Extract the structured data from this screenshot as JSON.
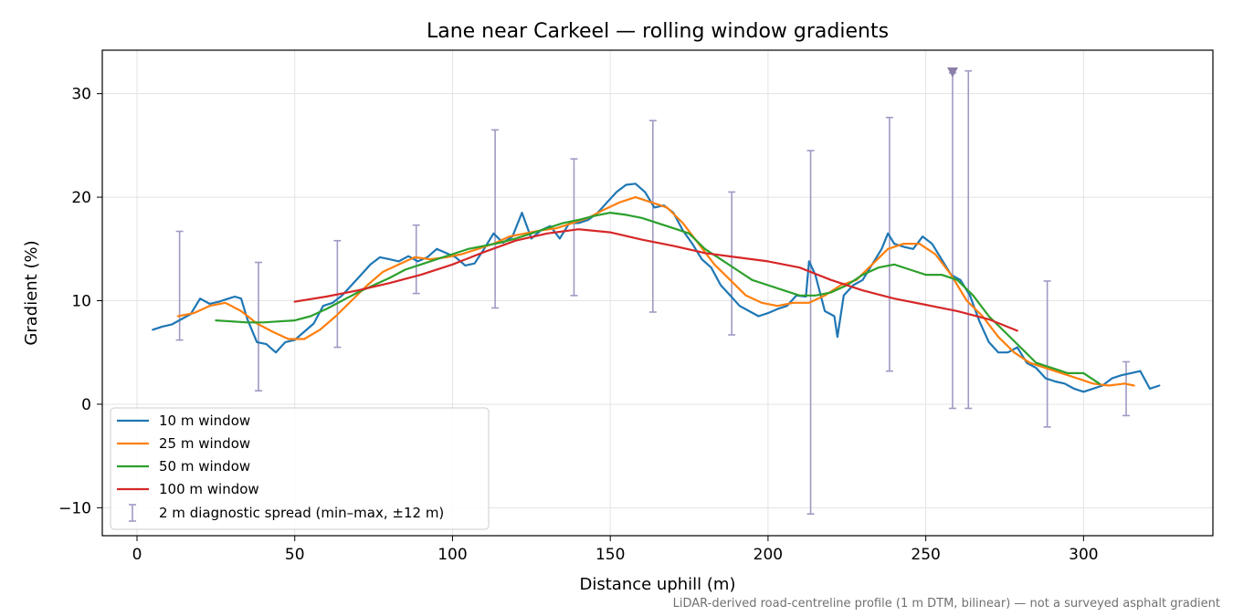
{
  "chart_data": {
    "type": "line",
    "title": "Lane near Carkeel — rolling window gradients",
    "xlabel": "Distance uphill (m)",
    "ylabel": "Gradient (%)",
    "xlim": [
      -11,
      341
    ],
    "ylim": [
      -12.7,
      34.2
    ],
    "xticks": [
      0,
      50,
      100,
      150,
      200,
      250,
      300
    ],
    "yticks": [
      -10,
      0,
      10,
      20,
      30
    ],
    "ytick_labels": [
      "−10",
      "0",
      "10",
      "20",
      "30"
    ],
    "grid": true,
    "legend_position": "lower-left",
    "series": [
      {
        "name": "10 m window",
        "color": "#1f77b4",
        "x": [
          5,
          8,
          11,
          14,
          17,
          20,
          23,
          26,
          29,
          31,
          33,
          35,
          38,
          41,
          44,
          47,
          50,
          53,
          56,
          59,
          62,
          65,
          68,
          71,
          74,
          77,
          80,
          83,
          86,
          89,
          92,
          95,
          98,
          101,
          104,
          107,
          110,
          113,
          116,
          119,
          122,
          125,
          128,
          131,
          134,
          137,
          140,
          143,
          146,
          149,
          152,
          155,
          158,
          161,
          164,
          167,
          170,
          173,
          176,
          179,
          182,
          185,
          188,
          191,
          194,
          197,
          200,
          203,
          206,
          209,
          212,
          213,
          215,
          218,
          221,
          222,
          224,
          227,
          230,
          233,
          236,
          238,
          240,
          243,
          246,
          249,
          252,
          255,
          258,
          261,
          264,
          267,
          270,
          273,
          276,
          279,
          282,
          285,
          288,
          291,
          294,
          297,
          300,
          303,
          306,
          309,
          312,
          315,
          318,
          321,
          324
        ],
        "y": [
          7.2,
          7.5,
          7.7,
          8.2,
          8.7,
          10.2,
          9.7,
          9.9,
          10.2,
          10.4,
          10.2,
          8.2,
          6.0,
          5.8,
          5.0,
          6.0,
          6.2,
          7.0,
          7.8,
          9.5,
          9.8,
          10.5,
          11.5,
          12.5,
          13.5,
          14.2,
          14.0,
          13.8,
          14.3,
          13.8,
          14.2,
          15.0,
          14.6,
          14.2,
          13.4,
          13.6,
          15.0,
          16.5,
          15.6,
          16.2,
          18.5,
          16.0,
          16.8,
          17.2,
          16.0,
          17.5,
          17.5,
          17.8,
          18.5,
          19.5,
          20.5,
          21.2,
          21.3,
          20.5,
          19.0,
          19.2,
          18.5,
          16.8,
          15.5,
          14.0,
          13.2,
          11.5,
          10.5,
          9.5,
          9.0,
          8.5,
          8.8,
          9.2,
          9.5,
          10.5,
          10.4,
          13.8,
          12.5,
          9.0,
          8.5,
          6.5,
          10.5,
          11.5,
          12.0,
          13.5,
          15.0,
          16.5,
          15.5,
          15.2,
          15.0,
          16.2,
          15.5,
          14.0,
          12.5,
          12.0,
          10.5,
          8.0,
          6.0,
          5.0,
          5.0,
          5.5,
          4.0,
          3.5,
          2.5,
          2.2,
          2.0,
          1.5,
          1.2,
          1.5,
          1.8,
          2.5,
          2.8,
          3.0,
          3.2,
          1.5,
          1.8
        ]
      },
      {
        "name": "25 m window",
        "color": "#ff7f0e",
        "x": [
          13,
          18,
          23,
          28,
          33,
          38,
          43,
          48,
          53,
          58,
          63,
          68,
          73,
          78,
          83,
          88,
          93,
          98,
          103,
          108,
          113,
          118,
          123,
          128,
          133,
          138,
          143,
          148,
          153,
          158,
          163,
          168,
          173,
          178,
          183,
          188,
          193,
          198,
          203,
          208,
          213,
          218,
          223,
          228,
          233,
          238,
          243,
          248,
          253,
          258,
          263,
          268,
          273,
          278,
          283,
          288,
          293,
          298,
          303,
          308,
          313,
          316
        ],
        "y": [
          8.5,
          8.8,
          9.5,
          9.8,
          9.0,
          7.8,
          7.0,
          6.3,
          6.3,
          7.2,
          8.5,
          10.0,
          11.5,
          12.8,
          13.5,
          14.2,
          14.0,
          14.2,
          14.5,
          15.0,
          15.5,
          16.2,
          16.5,
          16.8,
          17.0,
          17.5,
          18.0,
          18.8,
          19.5,
          20.0,
          19.5,
          19.0,
          17.5,
          15.5,
          13.5,
          12.0,
          10.5,
          9.8,
          9.5,
          9.8,
          9.8,
          10.5,
          11.5,
          12.0,
          13.5,
          15.0,
          15.5,
          15.5,
          14.5,
          12.5,
          10.0,
          8.5,
          6.5,
          5.0,
          4.0,
          3.5,
          3.0,
          2.5,
          2.0,
          1.8,
          2.0,
          1.8
        ]
      },
      {
        "name": "50 m window",
        "color": "#2ca02c",
        "x": [
          25,
          30,
          35,
          40,
          45,
          50,
          55,
          60,
          65,
          70,
          75,
          80,
          85,
          90,
          95,
          100,
          105,
          110,
          115,
          120,
          125,
          130,
          135,
          140,
          145,
          150,
          155,
          160,
          165,
          170,
          175,
          180,
          185,
          190,
          195,
          200,
          205,
          210,
          215,
          220,
          225,
          230,
          235,
          240,
          245,
          250,
          255,
          260,
          265,
          270,
          275,
          280,
          285,
          290,
          295,
          300,
          305
        ],
        "y": [
          8.1,
          8.0,
          7.9,
          7.9,
          8.0,
          8.1,
          8.5,
          9.2,
          10.0,
          10.8,
          11.5,
          12.2,
          13.0,
          13.5,
          14.0,
          14.5,
          15.0,
          15.3,
          15.6,
          16.0,
          16.5,
          17.0,
          17.5,
          17.8,
          18.2,
          18.5,
          18.3,
          18.0,
          17.5,
          17.0,
          16.5,
          15.0,
          14.0,
          13.0,
          12.0,
          11.5,
          11.0,
          10.5,
          10.5,
          10.8,
          11.5,
          12.5,
          13.2,
          13.5,
          13.0,
          12.5,
          12.5,
          12.0,
          10.5,
          8.5,
          7.0,
          5.5,
          4.0,
          3.5,
          3.0,
          3.0,
          2.0
        ]
      },
      {
        "name": "100 m window",
        "color": "#d62728",
        "x": [
          50,
          60,
          70,
          80,
          90,
          100,
          110,
          120,
          130,
          140,
          150,
          160,
          170,
          180,
          190,
          200,
          210,
          220,
          230,
          240,
          250,
          260,
          270,
          279
        ],
        "y": [
          9.9,
          10.4,
          11.0,
          11.7,
          12.5,
          13.5,
          14.7,
          15.8,
          16.5,
          16.9,
          16.6,
          15.9,
          15.3,
          14.6,
          14.2,
          13.8,
          13.2,
          12.0,
          11.0,
          10.2,
          9.6,
          9.0,
          8.2,
          7.1
        ]
      }
    ],
    "errorbars": {
      "name": "2 m diagnostic spread (min–max, ±12 m)",
      "color": "#9f9ac4",
      "points": [
        {
          "x": 13.5,
          "low": 6.2,
          "high": 16.7
        },
        {
          "x": 38.5,
          "low": 1.3,
          "high": 13.7
        },
        {
          "x": 63.5,
          "low": 5.5,
          "high": 15.8
        },
        {
          "x": 88.5,
          "low": 10.7,
          "high": 17.3
        },
        {
          "x": 113.5,
          "low": 9.3,
          "high": 26.5
        },
        {
          "x": 138.5,
          "low": 10.5,
          "high": 23.7
        },
        {
          "x": 163.5,
          "low": 8.9,
          "high": 27.4
        },
        {
          "x": 188.5,
          "low": 6.7,
          "high": 20.5
        },
        {
          "x": 213.5,
          "low": -10.6,
          "high": 24.5
        },
        {
          "x": 238.5,
          "low": 3.2,
          "high": 27.7
        },
        {
          "x": 258.5,
          "low": -0.4,
          "high": 32.0
        },
        {
          "x": 263.5,
          "low": -0.4,
          "high": 32.2
        },
        {
          "x": 288.5,
          "low": -2.2,
          "high": 11.9
        },
        {
          "x": 313.5,
          "low": -1.1,
          "high": 4.1
        }
      ]
    },
    "marker": {
      "x": 258.5,
      "y": 32.1,
      "color": "#8c7fa8",
      "shape": "triangle-down"
    },
    "footnote": "LiDAR-derived road-centreline profile (1 m DTM, bilinear) — not a surveyed asphalt gradient"
  }
}
